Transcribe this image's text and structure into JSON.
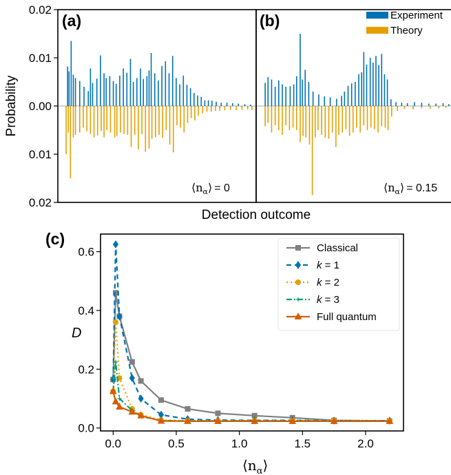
{
  "chart_data": [
    {
      "type": "bar",
      "panel_label": "(a)",
      "xlabel": "Detection outcome",
      "ylabel": "Probability",
      "ylim": [
        -0.02,
        0.02
      ],
      "yticks": [
        {
          "v": 0.02,
          "label": "0.02"
        },
        {
          "v": 0.01,
          "label": "0.01"
        },
        {
          "v": 0.0,
          "label": "0.00"
        },
        {
          "v": -0.01,
          "label": "0.01"
        },
        {
          "v": -0.02,
          "label": "0.02"
        }
      ],
      "annotation": {
        "symbol": "⟨n",
        "sub": "α",
        "close": "⟩",
        "value": "= 0"
      },
      "series": [
        {
          "name": "Experiment",
          "color": "#0072B2",
          "direction": "up",
          "peaks": [
            [
              4,
              0.0082
            ],
            [
              6,
              0.0072
            ],
            [
              9,
              0.0135
            ],
            [
              12,
              0.0065
            ],
            [
              15,
              0.0058
            ],
            [
              21,
              0.0052
            ],
            [
              27,
              0.004
            ],
            [
              33,
              0.0031
            ],
            [
              36,
              0.0078
            ],
            [
              39,
              0.0048
            ],
            [
              45,
              0.0057
            ],
            [
              50,
              0.0105
            ],
            [
              55,
              0.0068
            ],
            [
              58,
              0.0058
            ],
            [
              63,
              0.0062
            ],
            [
              68,
              0.0052
            ],
            [
              72,
              0.0046
            ],
            [
              77,
              0.0063
            ],
            [
              82,
              0.0078
            ],
            [
              87,
              0.0069
            ],
            [
              92,
              0.0098
            ],
            [
              96,
              0.005
            ],
            [
              101,
              0.0058
            ],
            [
              106,
              0.0078
            ],
            [
              110,
              0.0056
            ],
            [
              115,
              0.0062
            ],
            [
              118,
              0.0074
            ],
            [
              121,
              0.011
            ],
            [
              126,
              0.0068
            ],
            [
              131,
              0.0053
            ],
            [
              136,
              0.0083
            ],
            [
              141,
              0.0093
            ],
            [
              146,
              0.0068
            ],
            [
              151,
              0.0104
            ],
            [
              156,
              0.0058
            ],
            [
              161,
              0.0045
            ],
            [
              166,
              0.0063
            ],
            [
              171,
              0.0044
            ],
            [
              176,
              0.0037
            ],
            [
              181,
              0.0027
            ],
            [
              186,
              0.0022
            ],
            [
              191,
              0.0019
            ],
            [
              196,
              0.0012
            ],
            [
              201,
              0.0012
            ],
            [
              206,
              0.0011
            ],
            [
              212,
              0.0009
            ],
            [
              219,
              0.0007
            ],
            [
              227,
              0.0007
            ],
            [
              235,
              0.0006
            ],
            [
              243,
              0.0005
            ],
            [
              252,
              0.0004
            ],
            [
              260,
              0.0003
            ]
          ]
        },
        {
          "name": "Theory",
          "color": "#E69F00",
          "direction": "down",
          "peaks": [
            [
              2,
              -0.01
            ],
            [
              5,
              -0.0055
            ],
            [
              8,
              -0.015
            ],
            [
              12,
              -0.0065
            ],
            [
              15,
              -0.006
            ],
            [
              21,
              -0.0055
            ],
            [
              26,
              -0.0045
            ],
            [
              31,
              -0.0052
            ],
            [
              36,
              -0.0058
            ],
            [
              41,
              -0.0065
            ],
            [
              46,
              -0.0061
            ],
            [
              51,
              -0.0052
            ],
            [
              55,
              -0.0065
            ],
            [
              59,
              -0.005
            ],
            [
              64,
              -0.0055
            ],
            [
              70,
              -0.0065
            ],
            [
              73,
              -0.0062
            ],
            [
              78,
              -0.0055
            ],
            [
              83,
              -0.0058
            ],
            [
              88,
              -0.006
            ],
            [
              93,
              -0.0085
            ],
            [
              98,
              -0.006
            ],
            [
              103,
              -0.009
            ],
            [
              108,
              -0.0058
            ],
            [
              113,
              -0.0095
            ],
            [
              118,
              -0.0088
            ],
            [
              122,
              -0.0068
            ],
            [
              127,
              -0.0065
            ],
            [
              132,
              -0.006
            ],
            [
              137,
              -0.0066
            ],
            [
              142,
              -0.005
            ],
            [
              147,
              -0.008
            ],
            [
              152,
              -0.0096
            ],
            [
              157,
              -0.004
            ],
            [
              162,
              -0.0045
            ],
            [
              167,
              -0.0055
            ],
            [
              172,
              -0.0035
            ],
            [
              177,
              -0.0025
            ],
            [
              182,
              -0.003
            ],
            [
              187,
              -0.002
            ],
            [
              193,
              -0.0015
            ],
            [
              199,
              -0.0012
            ],
            [
              205,
              -0.0012
            ],
            [
              211,
              -0.001
            ],
            [
              217,
              -0.001
            ],
            [
              224,
              -0.0009
            ],
            [
              232,
              -0.0008
            ],
            [
              240,
              -0.0009
            ],
            [
              248,
              -0.0008
            ],
            [
              256,
              -0.0007
            ],
            [
              262,
              -0.0008
            ]
          ]
        }
      ]
    },
    {
      "type": "bar",
      "panel_label": "(b)",
      "ylim": [
        -0.02,
        0.02
      ],
      "annotation": {
        "symbol": "⟨n",
        "sub": "α",
        "close": "⟩",
        "value": "= 0.15"
      },
      "series": [
        {
          "name": "Experiment",
          "color": "#0072B2",
          "direction": "up",
          "peaks": [
            [
              3,
              0.0048
            ],
            [
              7,
              0.006
            ],
            [
              12,
              0.0055
            ],
            [
              17,
              0.004
            ],
            [
              22,
              0.0053
            ],
            [
              27,
              0.0045
            ],
            [
              32,
              0.004
            ],
            [
              38,
              0.0041
            ],
            [
              43,
              0.0045
            ],
            [
              47,
              0.0062
            ],
            [
              52,
              0.015
            ],
            [
              55,
              0.0055
            ],
            [
              59,
              0.0075
            ],
            [
              64,
              0.005
            ],
            [
              70,
              0.003
            ],
            [
              78,
              0.0024
            ],
            [
              86,
              0.002
            ],
            [
              94,
              0.0018
            ],
            [
              103,
              0.0015
            ],
            [
              110,
              0.0021
            ],
            [
              114,
              0.003
            ],
            [
              119,
              0.0042
            ],
            [
              124,
              0.0047
            ],
            [
              129,
              0.005
            ],
            [
              134,
              0.0066
            ],
            [
              138,
              0.007
            ],
            [
              141,
              0.0112
            ],
            [
              145,
              0.0086
            ],
            [
              150,
              0.01
            ],
            [
              154,
              0.009
            ],
            [
              158,
              0.0104
            ],
            [
              162,
              0.0085
            ],
            [
              166,
              0.0108
            ],
            [
              170,
              0.0066
            ],
            [
              174,
              0.0055
            ],
            [
              179,
              0.0014
            ],
            [
              186,
              0.0008
            ],
            [
              194,
              0.0007
            ],
            [
              202,
              0.0006
            ],
            [
              212,
              0.0008
            ],
            [
              222,
              0.0007
            ],
            [
              232,
              0.0005
            ],
            [
              242,
              0.0005
            ],
            [
              252,
              0.0006
            ],
            [
              260,
              0.0004
            ]
          ]
        },
        {
          "name": "Theory",
          "color": "#E69F00",
          "direction": "down",
          "peaks": [
            [
              3,
              -0.0042
            ],
            [
              7,
              -0.0035
            ],
            [
              12,
              -0.0055
            ],
            [
              17,
              -0.004
            ],
            [
              22,
              -0.005
            ],
            [
              27,
              -0.006
            ],
            [
              32,
              -0.004
            ],
            [
              37,
              -0.005
            ],
            [
              42,
              -0.0045
            ],
            [
              47,
              -0.005
            ],
            [
              52,
              -0.0075
            ],
            [
              56,
              -0.0062
            ],
            [
              60,
              -0.0065
            ],
            [
              65,
              -0.008
            ],
            [
              69,
              -0.0185
            ],
            [
              73,
              -0.0065
            ],
            [
              77,
              -0.005
            ],
            [
              82,
              -0.006
            ],
            [
              87,
              -0.0065
            ],
            [
              92,
              -0.0068
            ],
            [
              97,
              -0.0055
            ],
            [
              102,
              -0.0085
            ],
            [
              106,
              -0.006
            ],
            [
              111,
              -0.0055
            ],
            [
              116,
              -0.0048
            ],
            [
              121,
              -0.0062
            ],
            [
              126,
              -0.0055
            ],
            [
              131,
              -0.0045
            ],
            [
              136,
              -0.0055
            ],
            [
              141,
              -0.004
            ],
            [
              146,
              -0.005
            ],
            [
              151,
              -0.0045
            ],
            [
              156,
              -0.0048
            ],
            [
              161,
              -0.0055
            ],
            [
              166,
              -0.0042
            ],
            [
              171,
              -0.0045
            ],
            [
              175,
              -0.005
            ],
            [
              180,
              -0.0022
            ],
            [
              188,
              -0.001
            ],
            [
              198,
              -0.0006
            ],
            [
              210,
              -0.0007
            ],
            [
              222,
              -0.0005
            ],
            [
              234,
              -0.0006
            ],
            [
              246,
              -0.0005
            ],
            [
              256,
              -0.0004
            ]
          ]
        }
      ]
    },
    {
      "type": "line",
      "panel_label": "(c)",
      "ylabel": "D",
      "xlabel": {
        "symbol": "⟨n",
        "sub": "α",
        "close": "⟩"
      },
      "xlim": [
        -0.1,
        2.3
      ],
      "ylim": [
        -0.01,
        0.66
      ],
      "xticks": [
        {
          "v": 0.0,
          "label": "0.0"
        },
        {
          "v": 0.5,
          "label": "0.5"
        },
        {
          "v": 1.0,
          "label": "1.0"
        },
        {
          "v": 1.5,
          "label": "1.5"
        },
        {
          "v": 2.0,
          "label": "2.0"
        }
      ],
      "yticks": [
        {
          "v": 0.0,
          "label": "0.0"
        },
        {
          "v": 0.2,
          "label": "0.2"
        },
        {
          "v": 0.4,
          "label": "0.4"
        },
        {
          "v": 0.6,
          "label": "0.6"
        }
      ],
      "legend_position": "top-right",
      "series": [
        {
          "name": "Classical",
          "color": "#808080",
          "dash": "",
          "marker": "square",
          "x": [
            0.0,
            0.02,
            0.05,
            0.15,
            0.22,
            0.38,
            0.59,
            0.83,
            1.12,
            1.42,
            1.75,
            2.19
          ],
          "y": [
            0.165,
            0.46,
            0.38,
            0.225,
            0.16,
            0.095,
            0.065,
            0.05,
            0.042,
            0.035,
            0.026,
            0.024
          ]
        },
        {
          "name": "k = 1",
          "name_k": "k",
          "name_rest": " = 1",
          "color": "#0072B2",
          "dash": "7,5",
          "marker": "diamond",
          "x": [
            0.0,
            0.02,
            0.05,
            0.15,
            0.22,
            0.38,
            0.59,
            0.83,
            1.12,
            1.42,
            1.75,
            2.19
          ],
          "y": [
            0.165,
            0.625,
            0.38,
            0.17,
            0.1,
            0.045,
            0.03,
            0.027,
            0.026,
            0.026,
            0.025,
            0.025
          ]
        },
        {
          "name": "k = 2",
          "name_k": "k",
          "name_rest": " = 2",
          "color": "#E69F00",
          "dash": "2,4",
          "marker": "circle",
          "x": [
            0.0,
            0.02,
            0.05,
            0.15,
            0.22,
            0.38,
            0.59,
            0.83,
            1.12,
            1.42,
            1.75,
            2.19
          ],
          "y": [
            0.125,
            0.36,
            0.17,
            0.065,
            0.045,
            0.027,
            0.025,
            0.025,
            0.025,
            0.025,
            0.025,
            0.025
          ]
        },
        {
          "name": "k = 3",
          "name_k": "k",
          "name_rest": " = 3",
          "color": "#009E73",
          "dash": "8,3,2,3",
          "marker": "plus",
          "x": [
            0.0,
            0.02,
            0.05,
            0.15,
            0.22,
            0.38,
            0.59,
            0.83,
            1.12,
            1.42,
            1.75,
            2.19
          ],
          "y": [
            0.125,
            0.225,
            0.1,
            0.06,
            0.04,
            0.025,
            0.024,
            0.024,
            0.024,
            0.024,
            0.024,
            0.024
          ]
        },
        {
          "name": "Full quantum",
          "color": "#D55E00",
          "dash": "",
          "marker": "triangle",
          "x": [
            0.0,
            0.02,
            0.05,
            0.15,
            0.22,
            0.38,
            0.59,
            0.83,
            1.12,
            1.42,
            1.75,
            2.19
          ],
          "y": [
            0.125,
            0.09,
            0.072,
            0.055,
            0.042,
            0.024,
            0.023,
            0.023,
            0.023,
            0.023,
            0.023,
            0.023
          ]
        }
      ]
    }
  ]
}
